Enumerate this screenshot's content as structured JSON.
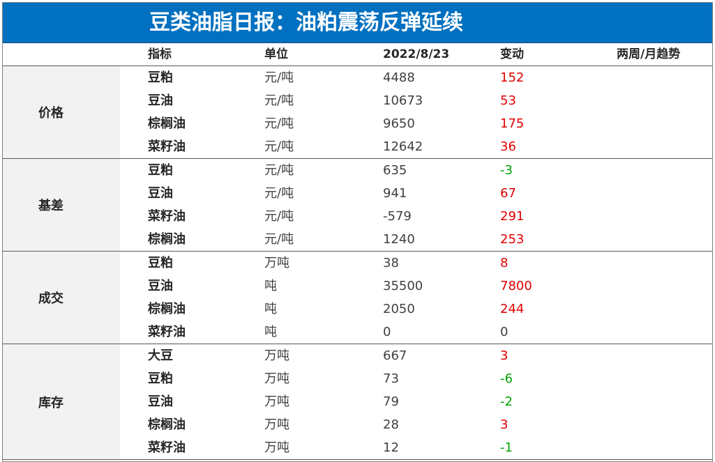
{
  "title": "豆类油脂日报：油粕震荡反弹延续",
  "header": {
    "indicator": "指标",
    "unit": "单位",
    "date": "2022/8/23",
    "change": "变动",
    "trend": "两周/月趋势"
  },
  "colors": {
    "title_bg": "#0070c0",
    "positive": "#e00000",
    "negative": "#00a000",
    "group_bg": "#f2f2f2"
  },
  "groups": [
    {
      "label": "价格",
      "rows": [
        {
          "indicator": "豆粕",
          "unit": "元/吨",
          "value": "4488",
          "change": "152"
        },
        {
          "indicator": "豆油",
          "unit": "元/吨",
          "value": "10673",
          "change": "53"
        },
        {
          "indicator": "棕榈油",
          "unit": "元/吨",
          "value": "9650",
          "change": "175"
        },
        {
          "indicator": "菜籽油",
          "unit": "元/吨",
          "value": "12642",
          "change": "36"
        }
      ]
    },
    {
      "label": "基差",
      "rows": [
        {
          "indicator": "豆粕",
          "unit": "元/吨",
          "value": "635",
          "change": "-3"
        },
        {
          "indicator": "豆油",
          "unit": "元/吨",
          "value": "941",
          "change": "67"
        },
        {
          "indicator": "菜籽油",
          "unit": "元/吨",
          "value": "-579",
          "change": "291"
        },
        {
          "indicator": "棕榈油",
          "unit": "元/吨",
          "value": "1240",
          "change": "253"
        }
      ]
    },
    {
      "label": "成交",
      "rows": [
        {
          "indicator": "豆粕",
          "unit": "万吨",
          "value": "38",
          "change": "8"
        },
        {
          "indicator": "豆油",
          "unit": "吨",
          "value": "35500",
          "change": "7800"
        },
        {
          "indicator": "棕榈油",
          "unit": "吨",
          "value": "2050",
          "change": "244"
        },
        {
          "indicator": "菜籽油",
          "unit": "吨",
          "value": "0",
          "change": "0"
        }
      ]
    },
    {
      "label": "库存",
      "rows": [
        {
          "indicator": "大豆",
          "unit": "万吨",
          "value": "667",
          "change": "3"
        },
        {
          "indicator": "豆粕",
          "unit": "万吨",
          "value": "73",
          "change": "-6"
        },
        {
          "indicator": "豆油",
          "unit": "万吨",
          "value": "79",
          "change": "-2"
        },
        {
          "indicator": "棕榈油",
          "unit": "万吨",
          "value": "28",
          "change": "3"
        },
        {
          "indicator": "菜籽油",
          "unit": "万吨",
          "value": "12",
          "change": "-1"
        }
      ]
    }
  ]
}
